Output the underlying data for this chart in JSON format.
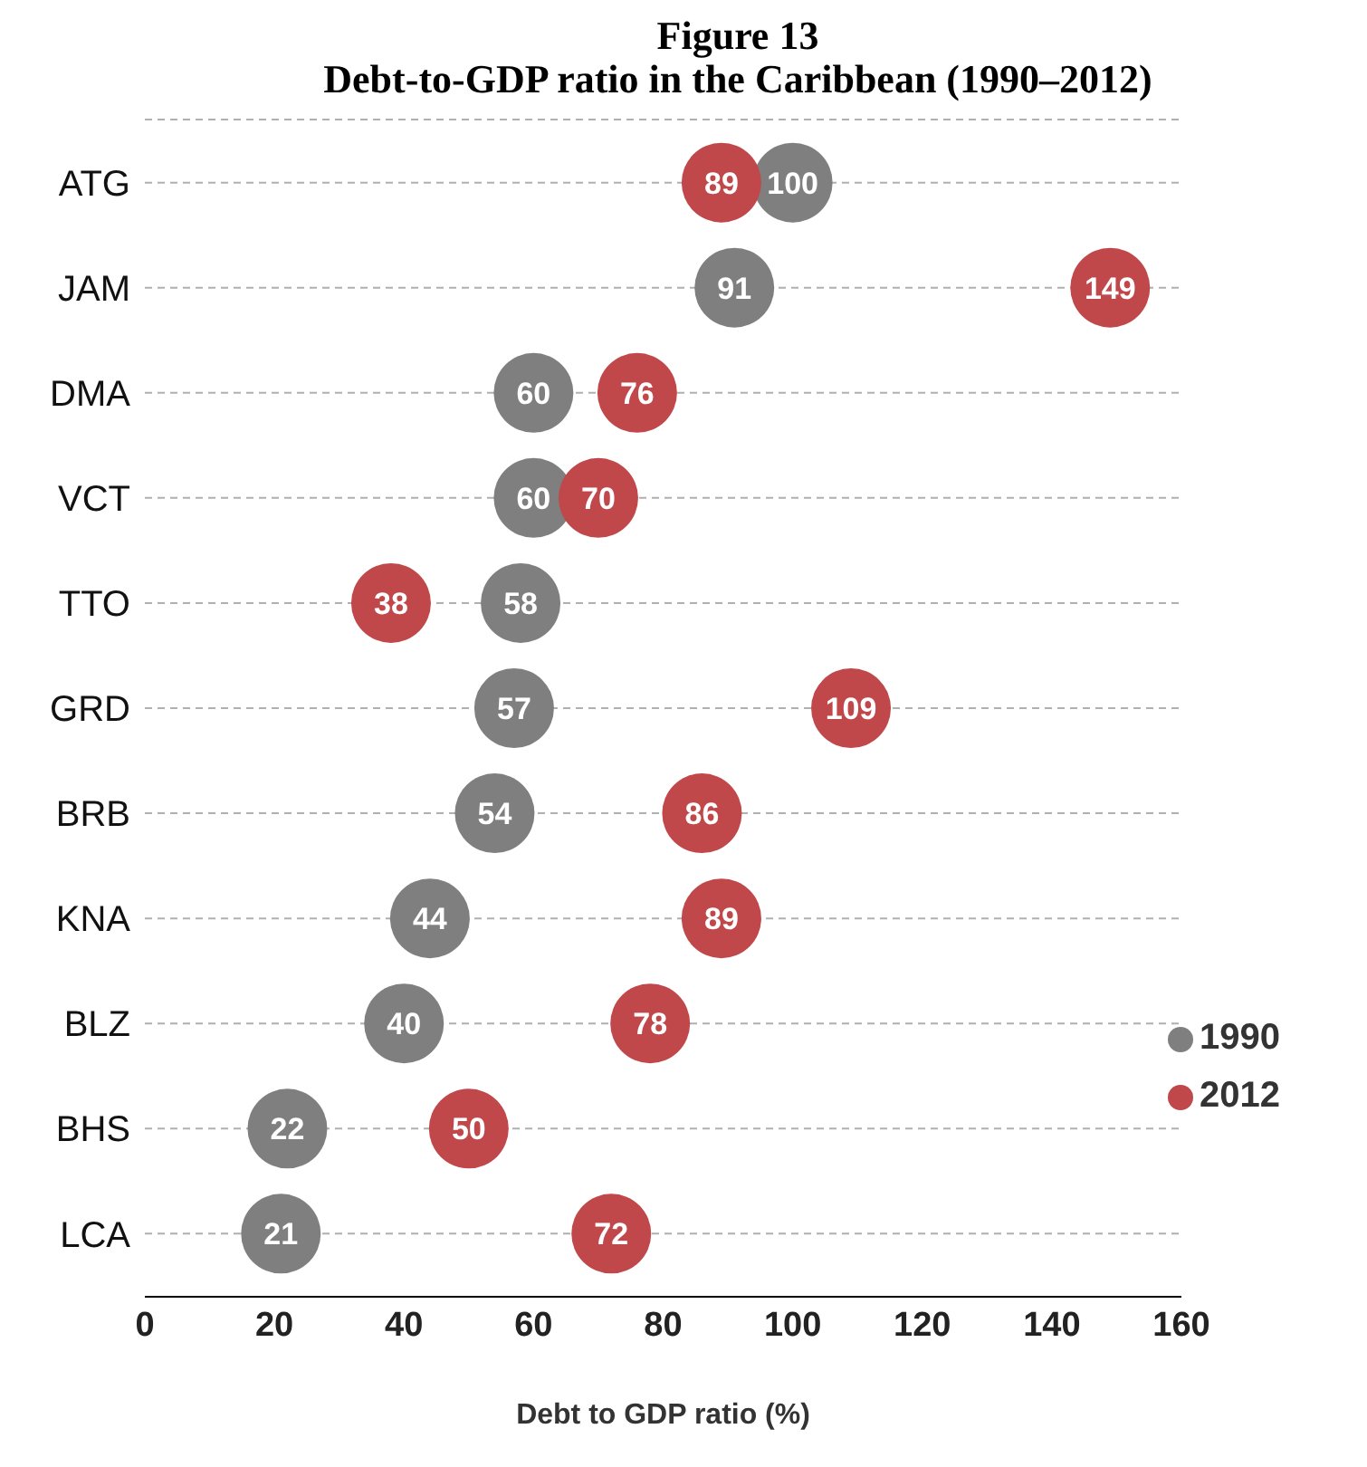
{
  "chart_data": {
    "type": "scatter",
    "title": "Figure 13",
    "subtitle": "Debt-to-GDP ratio in the Caribbean (1990–2012)",
    "xlabel": "Debt to GDP ratio (%)",
    "orientation": "horizontal",
    "categories": [
      "ATG",
      "JAM",
      "DMA",
      "VCT",
      "TTO",
      "GRD",
      "BRB",
      "KNA",
      "BLZ",
      "BHS",
      "LCA"
    ],
    "series": [
      {
        "name": "1990",
        "color": "#7f7f7f",
        "values": [
          100,
          91,
          60,
          60,
          58,
          57,
          54,
          44,
          40,
          22,
          21
        ]
      },
      {
        "name": "2012",
        "color": "#c0474a",
        "values": [
          89,
          149,
          76,
          70,
          38,
          109,
          86,
          89,
          78,
          50,
          72
        ]
      }
    ],
    "xlim": [
      0,
      160
    ],
    "xticks": [
      0,
      20,
      40,
      60,
      80,
      100,
      120,
      140,
      160
    ],
    "grid": "y",
    "legend": "bottom right",
    "data_labels": true,
    "marker": "circle"
  }
}
